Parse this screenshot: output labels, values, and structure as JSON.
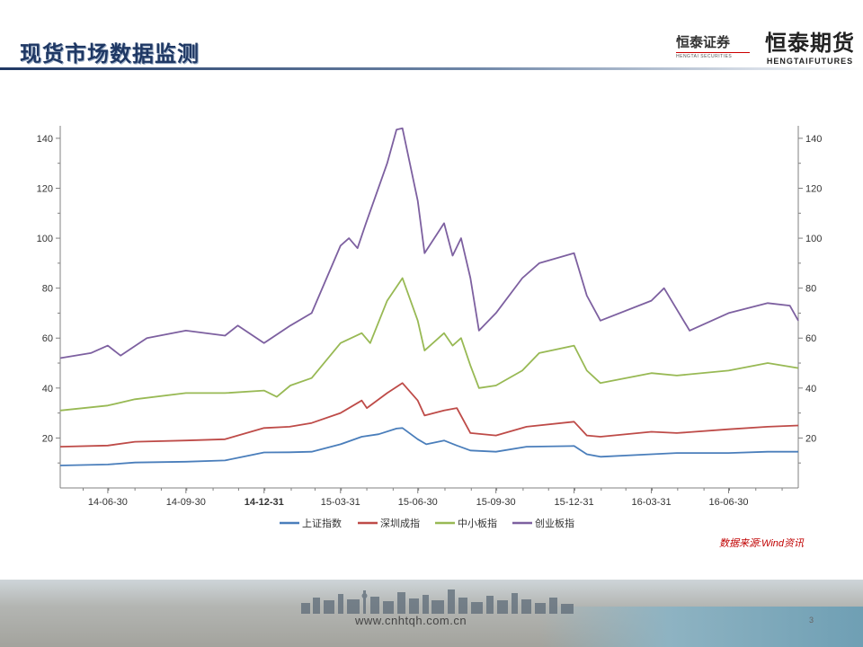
{
  "header": {
    "title": "现货市场数据监测",
    "logo1_text": "恒泰证券",
    "logo1_sub": "HENGTAI SECURITIES",
    "logo2_text": "恒泰期货",
    "logo2_sub": "HENGTAIFUTURES"
  },
  "source_note": "数据来源:Wind资讯",
  "footer": {
    "url": "www.cnhtqh.com.cn",
    "page": "3"
  },
  "chart_data": {
    "type": "line",
    "title": "",
    "xlabel": "",
    "ylabel": "",
    "ylim": [
      0,
      145
    ],
    "yticks": [
      20,
      40,
      60,
      80,
      100,
      120,
      140
    ],
    "y_axis_right": true,
    "x_domain": [
      "2014-05-05",
      "2016-09-20"
    ],
    "xticks": [
      "2014-06-30",
      "2014-09-30",
      "2014-12-31",
      "2015-03-31",
      "2015-06-30",
      "2015-09-30",
      "2015-12-31",
      "2016-03-31",
      "2016-06-30"
    ],
    "xtick_labels": [
      "14-06-30",
      "14-09-30",
      "14-12-31",
      "15-03-31",
      "15-06-30",
      "15-09-30",
      "15-12-31",
      "16-03-31",
      "16-06-30"
    ],
    "legend_position": "bottom",
    "grid": false,
    "series": [
      {
        "name": "上证指数",
        "color": "#4a7ebb",
        "points": [
          [
            "2014-05-05",
            9.0
          ],
          [
            "2014-06-30",
            9.4
          ],
          [
            "2014-08-01",
            10.2
          ],
          [
            "2014-09-30",
            10.5
          ],
          [
            "2014-11-15",
            11.0
          ],
          [
            "2014-12-31",
            14.2
          ],
          [
            "2015-01-30",
            14.3
          ],
          [
            "2015-02-25",
            14.5
          ],
          [
            "2015-03-31",
            17.5
          ],
          [
            "2015-04-25",
            20.5
          ],
          [
            "2015-05-15",
            21.5
          ],
          [
            "2015-06-05",
            23.8
          ],
          [
            "2015-06-12",
            24.0
          ],
          [
            "2015-06-30",
            19.5
          ],
          [
            "2015-07-10",
            17.5
          ],
          [
            "2015-07-31",
            19.0
          ],
          [
            "2015-08-15",
            17.0
          ],
          [
            "2015-08-31",
            15.0
          ],
          [
            "2015-09-30",
            14.5
          ],
          [
            "2015-11-05",
            16.5
          ],
          [
            "2015-12-31",
            16.8
          ],
          [
            "2016-01-15",
            13.5
          ],
          [
            "2016-01-31",
            12.5
          ],
          [
            "2016-03-31",
            13.5
          ],
          [
            "2016-04-30",
            14.0
          ],
          [
            "2016-06-30",
            14.0
          ],
          [
            "2016-08-15",
            14.5
          ],
          [
            "2016-09-20",
            14.5
          ]
        ]
      },
      {
        "name": "深圳成指",
        "color": "#be4b48",
        "points": [
          [
            "2014-05-05",
            16.5
          ],
          [
            "2014-06-30",
            17.0
          ],
          [
            "2014-08-01",
            18.5
          ],
          [
            "2014-09-30",
            19.0
          ],
          [
            "2014-11-15",
            19.5
          ],
          [
            "2014-12-31",
            24.0
          ],
          [
            "2015-01-30",
            24.5
          ],
          [
            "2015-02-25",
            26.0
          ],
          [
            "2015-03-31",
            30.0
          ],
          [
            "2015-04-25",
            35.0
          ],
          [
            "2015-05-01",
            32.0
          ],
          [
            "2015-05-25",
            38.0
          ],
          [
            "2015-06-12",
            42.0
          ],
          [
            "2015-06-30",
            35.0
          ],
          [
            "2015-07-08",
            29.0
          ],
          [
            "2015-07-31",
            31.0
          ],
          [
            "2015-08-15",
            32.0
          ],
          [
            "2015-08-31",
            22.0
          ],
          [
            "2015-09-30",
            21.0
          ],
          [
            "2015-11-05",
            24.5
          ],
          [
            "2015-12-31",
            26.5
          ],
          [
            "2016-01-15",
            21.0
          ],
          [
            "2016-01-31",
            20.5
          ],
          [
            "2016-03-31",
            22.5
          ],
          [
            "2016-04-30",
            22.0
          ],
          [
            "2016-06-30",
            23.5
          ],
          [
            "2016-08-15",
            24.5
          ],
          [
            "2016-09-20",
            25.0
          ]
        ]
      },
      {
        "name": "中小板指",
        "color": "#98b954",
        "points": [
          [
            "2014-05-05",
            31.0
          ],
          [
            "2014-06-30",
            33.0
          ],
          [
            "2014-08-01",
            35.5
          ],
          [
            "2014-09-30",
            38.0
          ],
          [
            "2014-11-15",
            38.0
          ],
          [
            "2014-12-31",
            39.0
          ],
          [
            "2015-01-15",
            36.5
          ],
          [
            "2015-01-31",
            41.0
          ],
          [
            "2015-02-25",
            44.0
          ],
          [
            "2015-03-31",
            58.0
          ],
          [
            "2015-04-25",
            62.0
          ],
          [
            "2015-05-05",
            58.0
          ],
          [
            "2015-05-25",
            75.0
          ],
          [
            "2015-06-12",
            84.0
          ],
          [
            "2015-06-30",
            67.0
          ],
          [
            "2015-07-08",
            55.0
          ],
          [
            "2015-07-31",
            62.0
          ],
          [
            "2015-08-10",
            57.0
          ],
          [
            "2015-08-20",
            60.0
          ],
          [
            "2015-08-31",
            49.0
          ],
          [
            "2015-09-10",
            40.0
          ],
          [
            "2015-09-30",
            41.0
          ],
          [
            "2015-10-31",
            47.0
          ],
          [
            "2015-11-20",
            54.0
          ],
          [
            "2015-12-31",
            57.0
          ],
          [
            "2016-01-15",
            47.0
          ],
          [
            "2016-01-31",
            42.0
          ],
          [
            "2016-03-31",
            46.0
          ],
          [
            "2016-04-30",
            45.0
          ],
          [
            "2016-06-30",
            47.0
          ],
          [
            "2016-08-15",
            50.0
          ],
          [
            "2016-09-20",
            48.0
          ]
        ]
      },
      {
        "name": "创业板指",
        "color": "#7d60a0",
        "points": [
          [
            "2014-05-05",
            52.0
          ],
          [
            "2014-06-10",
            54.0
          ],
          [
            "2014-06-30",
            57.0
          ],
          [
            "2014-07-15",
            53.0
          ],
          [
            "2014-08-15",
            60.0
          ],
          [
            "2014-09-30",
            63.0
          ],
          [
            "2014-11-15",
            61.0
          ],
          [
            "2014-11-30",
            65.0
          ],
          [
            "2014-12-31",
            58.0
          ],
          [
            "2015-01-31",
            65.0
          ],
          [
            "2015-02-25",
            70.0
          ],
          [
            "2015-03-31",
            97.0
          ],
          [
            "2015-04-10",
            100.0
          ],
          [
            "2015-04-20",
            96.0
          ],
          [
            "2015-04-30",
            106.0
          ],
          [
            "2015-05-25",
            130.0
          ],
          [
            "2015-06-05",
            143.5
          ],
          [
            "2015-06-12",
            144.0
          ],
          [
            "2015-06-30",
            115.0
          ],
          [
            "2015-07-08",
            94.0
          ],
          [
            "2015-07-31",
            106.0
          ],
          [
            "2015-08-10",
            93.0
          ],
          [
            "2015-08-20",
            100.0
          ],
          [
            "2015-08-31",
            84.0
          ],
          [
            "2015-09-10",
            63.0
          ],
          [
            "2015-09-30",
            70.0
          ],
          [
            "2015-10-31",
            84.0
          ],
          [
            "2015-11-20",
            90.0
          ],
          [
            "2015-12-31",
            94.0
          ],
          [
            "2016-01-15",
            77.0
          ],
          [
            "2016-01-31",
            67.0
          ],
          [
            "2016-03-31",
            75.0
          ],
          [
            "2016-04-15",
            80.0
          ],
          [
            "2016-05-15",
            63.0
          ],
          [
            "2016-06-30",
            70.0
          ],
          [
            "2016-08-15",
            74.0
          ],
          [
            "2016-09-10",
            73.0
          ],
          [
            "2016-09-20",
            67.0
          ]
        ]
      }
    ]
  }
}
